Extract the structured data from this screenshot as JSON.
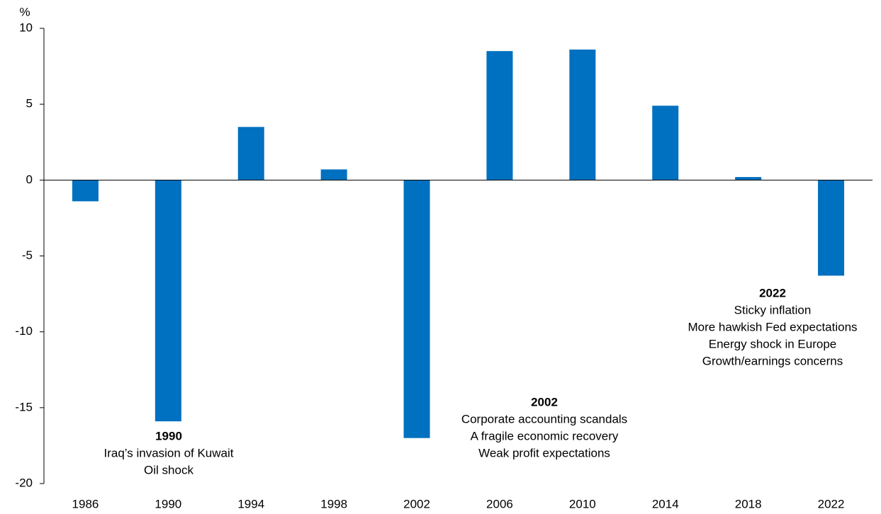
{
  "chart_data": {
    "type": "bar",
    "y_unit": "%",
    "categories": [
      "1986",
      "1990",
      "1994",
      "1998",
      "2002",
      "2006",
      "2010",
      "2014",
      "2018",
      "2022"
    ],
    "values": [
      -1.4,
      -15.9,
      3.5,
      0.7,
      -17.0,
      8.5,
      8.6,
      4.9,
      0.2,
      -6.3
    ],
    "color": "#0070c0",
    "ylim": [
      -20,
      10
    ],
    "yticks": [
      -20,
      -15,
      -10,
      -5,
      0,
      5,
      10
    ],
    "grid": false,
    "annotations": [
      {
        "title": "1990",
        "lines": [
          "Iraq’s invasion of Kuwait",
          "Oil shock"
        ]
      },
      {
        "title": "2002",
        "lines": [
          "Corporate accounting scandals",
          "A fragile economic recovery",
          "Weak profit expectations"
        ]
      },
      {
        "title": "2022",
        "lines": [
          "Sticky inflation",
          "More hawkish Fed expectations",
          "Energy shock in Europe",
          "Growth/earnings concerns"
        ]
      }
    ]
  }
}
